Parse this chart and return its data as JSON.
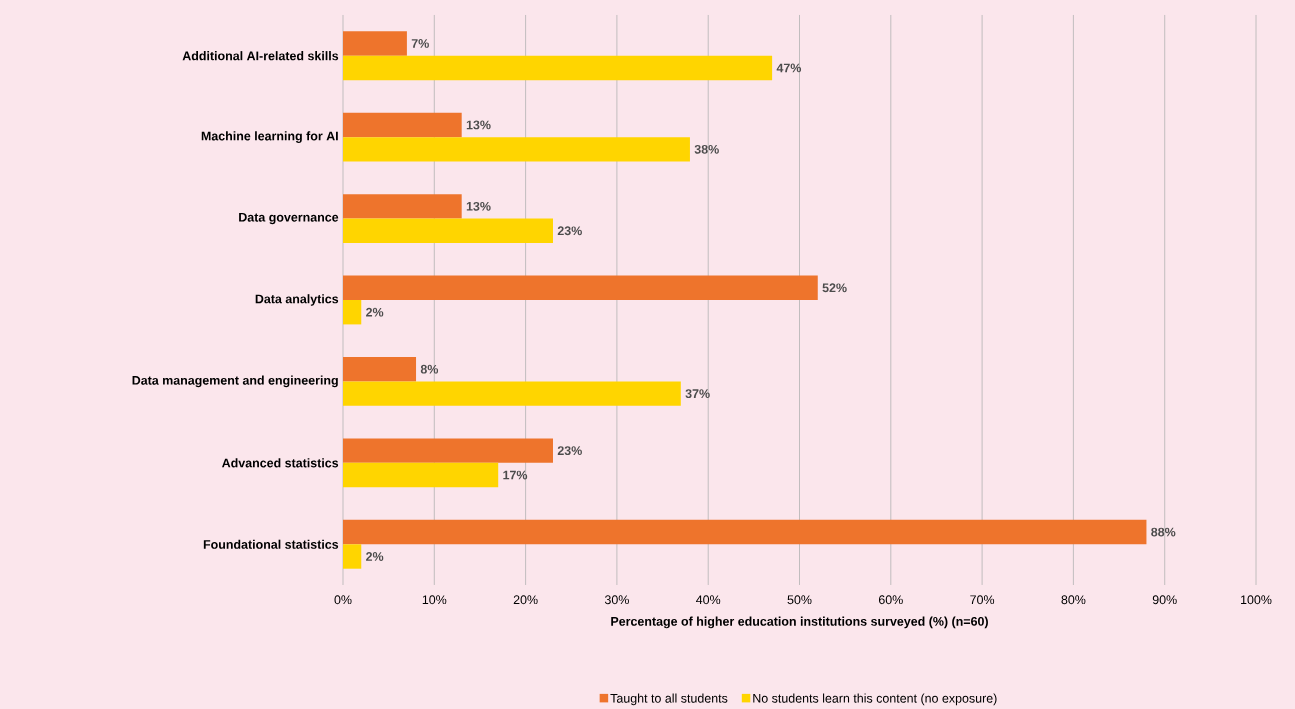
{
  "chart_data": {
    "type": "bar",
    "orientation": "horizontal",
    "categories": [
      "Additional AI-related skills",
      "Machine learning for AI",
      "Data governance",
      "Data analytics",
      "Data management and engineering",
      "Advanced statistics",
      "Foundational statistics"
    ],
    "series": [
      {
        "name": "Taught to all students",
        "color": "#ee742c",
        "values": [
          7,
          13,
          13,
          52,
          8,
          23,
          88
        ],
        "value_labels": [
          "7%",
          "13%",
          "13%",
          "52%",
          "8%",
          "23%",
          "88%"
        ]
      },
      {
        "name": "No students learn this content (no exposure)",
        "color": "#ffd500",
        "values": [
          47,
          38,
          23,
          2,
          37,
          17,
          2
        ],
        "value_labels": [
          "47%",
          "38%",
          "23%",
          "2%",
          "37%",
          "17%",
          "2%"
        ]
      }
    ],
    "xlabel": "Percentage of higher education institutions surveyed (%) (n=60)",
    "xlim": [
      0,
      100
    ],
    "xticks": [
      {
        "value": 0,
        "label": "0%"
      },
      {
        "value": 10,
        "label": "10%"
      },
      {
        "value": 20,
        "label": "20%"
      },
      {
        "value": 30,
        "label": "30%"
      },
      {
        "value": 40,
        "label": "40%"
      },
      {
        "value": 50,
        "label": "50%"
      },
      {
        "value": 60,
        "label": "60%"
      },
      {
        "value": 70,
        "label": "70%"
      },
      {
        "value": 80,
        "label": "80%"
      },
      {
        "value": 90,
        "label": "90%"
      },
      {
        "value": 100,
        "label": "100%"
      }
    ],
    "grid": "x",
    "legend": "bottom"
  }
}
